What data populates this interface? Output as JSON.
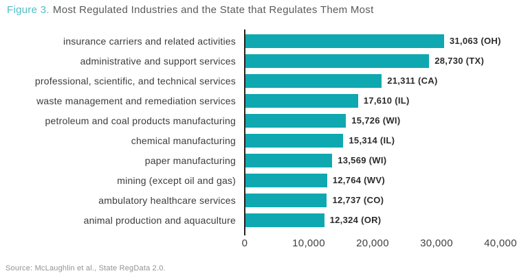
{
  "title": {
    "prefix": "Figure 3.",
    "text": "Most Regulated Industries and the State that Regulates Them Most"
  },
  "source": "Source: McLaughlin et al., State RegData 2.0.",
  "colors": {
    "bar": "#0FA8B0",
    "title_prefix": "#4FBEC6",
    "title_text": "#58595B",
    "axis_line": "#231F20",
    "category_label": "#3B3B3D",
    "value_label": "#2B2B2C",
    "tick_label": "#414042",
    "source_text": "#909295"
  },
  "chart_data": {
    "type": "bar",
    "orientation": "horizontal",
    "title": "Figure 3. Most Regulated Industries and the State that Regulates Them Most",
    "categories": [
      "insurance carriers and related activities",
      "administrative and support services",
      "professional, scientific, and technical services",
      "waste management and remediation services",
      "petroleum and coal products manufacturing",
      "chemical manufacturing",
      "paper manufacturing",
      "mining (except oil and gas)",
      "ambulatory healthcare services",
      "animal production and aquaculture"
    ],
    "values": [
      31063,
      28730,
      21311,
      17610,
      15726,
      15314,
      13569,
      12764,
      12737,
      12324
    ],
    "states": [
      "OH",
      "TX",
      "CA",
      "IL",
      "WI",
      "IL",
      "WI",
      "WV",
      "CO",
      "OR"
    ],
    "value_labels": [
      "31,063 (OH)",
      "28,730 (TX)",
      "21,311 (CA)",
      "17,610 (IL)",
      "15,726 (WI)",
      "15,314 (IL)",
      "13,569 (WI)",
      "12,764 (WV)",
      "12,737 (CO)",
      "12,324 (OR)"
    ],
    "xlabel": "",
    "ylabel": "",
    "xlim": [
      0,
      40000
    ],
    "x_ticks": [
      "0",
      "10,000",
      "20,000",
      "30,000",
      "40,000"
    ],
    "grid": false,
    "legend": false,
    "bar_color": "#0FA8B0"
  }
}
